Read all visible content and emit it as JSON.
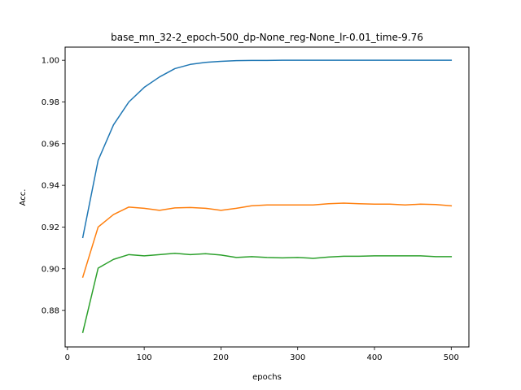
{
  "chart_data": {
    "type": "line",
    "title": "base_mn_32-2_epoch-500_dp-None_reg-None_lr-0.01_time-9.76",
    "xlabel": "epochs",
    "ylabel": "Acc.",
    "xlim": [
      -3,
      523
    ],
    "ylim": [
      0.8625,
      1.0063
    ],
    "xticks": [
      0,
      100,
      200,
      300,
      400,
      500
    ],
    "xtick_labels": [
      "0",
      "100",
      "200",
      "300",
      "400",
      "500"
    ],
    "yticks": [
      0.88,
      0.9,
      0.92,
      0.94,
      0.96,
      0.98,
      1.0
    ],
    "ytick_labels": [
      "0.88",
      "0.90",
      "0.92",
      "0.94",
      "0.96",
      "0.98",
      "1.00"
    ],
    "grid": false,
    "legend": "none",
    "x": [
      20,
      40,
      60,
      80,
      100,
      120,
      140,
      160,
      180,
      200,
      220,
      240,
      260,
      280,
      300,
      320,
      340,
      360,
      380,
      400,
      420,
      440,
      460,
      480,
      500
    ],
    "series": [
      {
        "color": "#1f77b4",
        "values": [
          0.915,
          0.952,
          0.969,
          0.98,
          0.987,
          0.992,
          0.996,
          0.998,
          0.999,
          0.9995,
          0.9998,
          0.9999,
          0.9999,
          1.0,
          1.0,
          1.0,
          1.0,
          1.0,
          1.0,
          1.0,
          1.0,
          1.0,
          1.0,
          1.0,
          1.0
        ]
      },
      {
        "color": "#ff7f0e",
        "values": [
          0.896,
          0.92,
          0.926,
          0.9296,
          0.929,
          0.928,
          0.9292,
          0.9294,
          0.929,
          0.928,
          0.929,
          0.9302,
          0.9306,
          0.9306,
          0.9306,
          0.9306,
          0.9312,
          0.9315,
          0.9312,
          0.931,
          0.931,
          0.9306,
          0.931,
          0.9308,
          0.9302
        ]
      },
      {
        "color": "#2ca02c",
        "values": [
          0.8695,
          0.9003,
          0.9045,
          0.9068,
          0.9062,
          0.9068,
          0.9074,
          0.9068,
          0.9072,
          0.9066,
          0.9054,
          0.9058,
          0.9054,
          0.9052,
          0.9054,
          0.905,
          0.9056,
          0.906,
          0.906,
          0.9062,
          0.9062,
          0.9062,
          0.9062,
          0.9058,
          0.9058
        ]
      }
    ]
  }
}
